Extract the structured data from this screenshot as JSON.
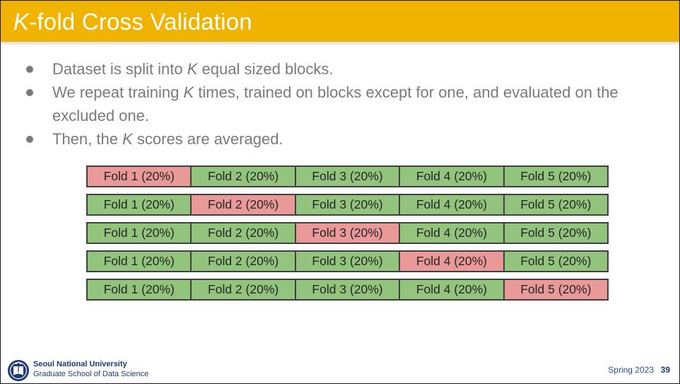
{
  "title": {
    "italic_part": "K",
    "rest": "-fold Cross Validation"
  },
  "bullets": [
    {
      "before": "Dataset is split into ",
      "italic": "K",
      "after": " equal sized blocks."
    },
    {
      "before": "We repeat training ",
      "italic": "K",
      "after": " times, trained on blocks except for one, and evaluated on the excluded one."
    },
    {
      "before": "Then, the ",
      "italic": "K",
      "after": " scores are averaged."
    }
  ],
  "fold_labels": [
    "Fold 1 (20%)",
    "Fold 2 (20%)",
    "Fold 3 (20%)",
    "Fold 4 (20%)",
    "Fold 5 (20%)"
  ],
  "fold_rows": [
    {
      "held_out_index": 0
    },
    {
      "held_out_index": 1
    },
    {
      "held_out_index": 2
    },
    {
      "held_out_index": 3
    },
    {
      "held_out_index": 4
    }
  ],
  "colors": {
    "title_bar": "#f0b400",
    "train_fold": "#93c47d",
    "test_fold": "#ea9999",
    "bullet_text": "#7a7a7a",
    "footer_text": "#1f3a70"
  },
  "footer": {
    "logo_icon": "snu-emblem-icon",
    "university": "Seoul National University",
    "school": "Graduate School of Data Science",
    "term": "Spring 2023",
    "page_number": "39"
  }
}
